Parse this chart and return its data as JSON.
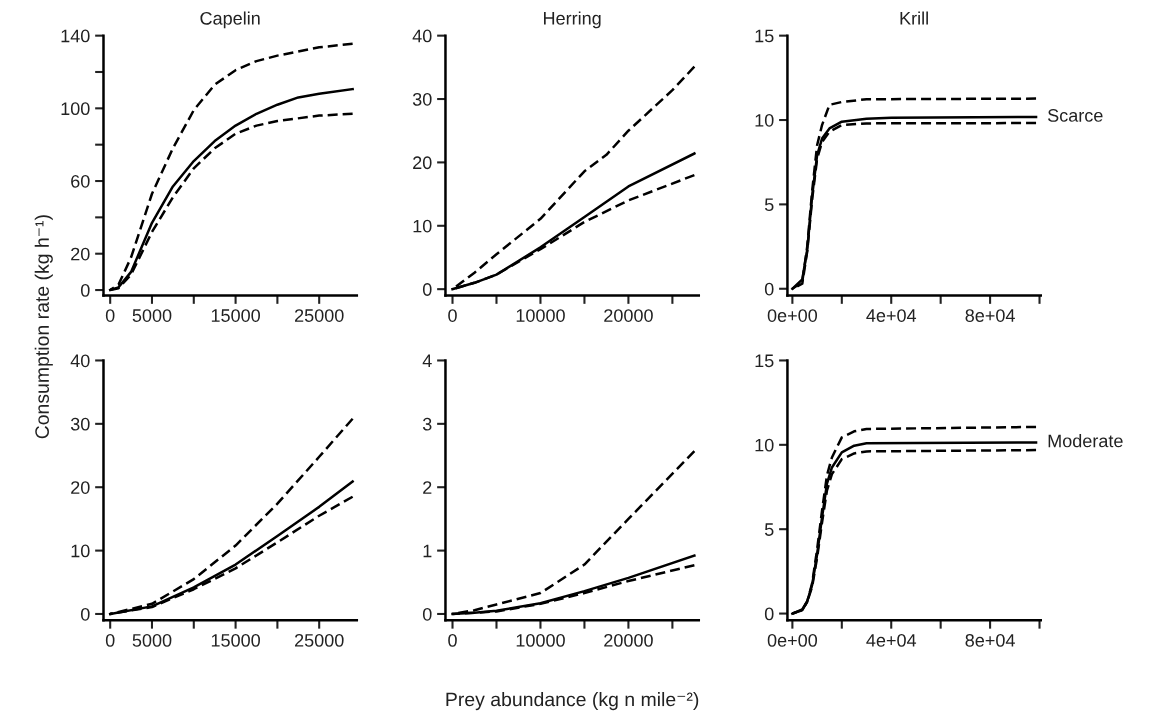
{
  "chart_data": [
    {
      "type": "line",
      "title": "Capelin",
      "ylabel": "Consumption rate (kg h⁻¹)",
      "xlim": [
        -800,
        29500
      ],
      "ylim": [
        -3,
        140
      ],
      "xticks": [
        0,
        5000,
        {
          "value": 10000,
          "label": null
        },
        15000,
        {
          "value": 20000,
          "label": null
        },
        25000
      ],
      "yticks": [
        0,
        20,
        {
          "value": 40,
          "label": null
        },
        60,
        {
          "value": 80,
          "label": null
        },
        100,
        {
          "value": 120,
          "label": null
        },
        140
      ],
      "series": [
        {
          "color": "#000000",
          "line_style": "solid",
          "x": [
            0,
            1000,
            2500,
            5000,
            7500,
            10000,
            12500,
            15000,
            17500,
            20000,
            22500,
            25000,
            29000
          ],
          "values": [
            0,
            1.5,
            10,
            37,
            57,
            71,
            82,
            90.5,
            97,
            102,
            106,
            108,
            110.6
          ]
        },
        {
          "color": "#000000",
          "line_style": "dashed",
          "x": [
            0,
            1000,
            2500,
            5000,
            7500,
            10000,
            12500,
            15000,
            17500,
            20000,
            25000,
            29000
          ],
          "values": [
            0,
            3,
            18,
            53,
            78,
            99,
            113,
            121,
            126,
            129,
            133.6,
            135.5
          ]
        },
        {
          "color": "#000000",
          "line_style": "dashed",
          "x": [
            0,
            1000,
            2500,
            5000,
            7500,
            10000,
            12500,
            15000,
            17500,
            20000,
            25000,
            29000
          ],
          "values": [
            0,
            1,
            8.5,
            32,
            51,
            67,
            78,
            86,
            90.5,
            93,
            96,
            97
          ]
        }
      ]
    },
    {
      "type": "line",
      "title": "Herring",
      "xlim": [
        -800,
        28000
      ],
      "ylim": [
        -1,
        40
      ],
      "xticks": [
        0,
        {
          "value": 5000,
          "label": null
        },
        10000,
        {
          "value": 15000,
          "label": null
        },
        20000,
        {
          "value": 25000,
          "label": null
        }
      ],
      "yticks": [
        0,
        10,
        20,
        30,
        40
      ],
      "series": [
        {
          "color": "#000000",
          "line_style": "solid",
          "x": [
            0,
            2500,
            5000,
            10000,
            15000,
            20000,
            27500
          ],
          "values": [
            0,
            1.0,
            2.3,
            6.6,
            11.4,
            16.2,
            21.4
          ]
        },
        {
          "color": "#000000",
          "line_style": "dashed",
          "x": [
            0,
            2500,
            5000,
            10000,
            15000,
            17500,
            20000,
            25000,
            27500
          ],
          "values": [
            0,
            2.6,
            5.5,
            11.1,
            18.6,
            21.2,
            25,
            31.4,
            35.1
          ]
        },
        {
          "color": "#000000",
          "line_style": "dashed",
          "x": [
            0,
            2500,
            5000,
            10000,
            15000,
            20000,
            27500
          ],
          "values": [
            0,
            1.0,
            2.3,
            6.3,
            10.6,
            14,
            18
          ]
        }
      ]
    },
    {
      "type": "line",
      "title": "Krill",
      "xlim": [
        -2000,
        100500
      ],
      "ylim": [
        -0.4,
        15
      ],
      "xticks": [
        {
          "value": 0,
          "label": "0e+00"
        },
        {
          "value": 20000,
          "label": null
        },
        {
          "value": 40000,
          "label": "4e+04"
        },
        {
          "value": 60000,
          "label": null
        },
        {
          "value": 80000,
          "label": "8e+04"
        },
        {
          "value": 100000,
          "label": null
        }
      ],
      "yticks": [
        0,
        5,
        10,
        15
      ],
      "annotations": [
        {
          "text": "Scarce",
          "x": 98600,
          "y": 10.18
        }
      ],
      "series": [
        {
          "color": "#000000",
          "line_style": "solid",
          "x": [
            0,
            4000,
            6000,
            8000,
            10000,
            12000,
            15000,
            20000,
            30000,
            40000,
            98600
          ],
          "values": [
            0,
            0.55,
            2.3,
            5.5,
            7.9,
            8.9,
            9.5,
            9.9,
            10.08,
            10.14,
            10.18
          ]
        },
        {
          "color": "#000000",
          "line_style": "dashed",
          "x": [
            0,
            4000,
            6000,
            8000,
            10000,
            12000,
            15000,
            20000,
            30000,
            98600
          ],
          "values": [
            0,
            0.4,
            2.5,
            5.8,
            8.5,
            9.7,
            10.9,
            11.07,
            11.23,
            11.27
          ]
        },
        {
          "color": "#000000",
          "line_style": "dashed",
          "x": [
            0,
            4000,
            6000,
            8000,
            10000,
            12000,
            15000,
            20000,
            30000,
            98600
          ],
          "values": [
            0,
            0.3,
            2.2,
            5.3,
            7.7,
            8.7,
            9.3,
            9.7,
            9.8,
            9.82
          ]
        }
      ]
    },
    {
      "type": "line",
      "xlim": [
        -800,
        29500
      ],
      "ylim": [
        -1,
        40
      ],
      "xticks": [
        0,
        5000,
        {
          "value": 10000,
          "label": null
        },
        15000,
        {
          "value": 20000,
          "label": null
        },
        25000
      ],
      "yticks": [
        0,
        10,
        20,
        30,
        40
      ],
      "series": [
        {
          "color": "#000000",
          "line_style": "solid",
          "x": [
            0,
            5000,
            10000,
            15000,
            20000,
            25000,
            29000
          ],
          "values": [
            0,
            1.2,
            4.2,
            7.8,
            12.3,
            16.9,
            20.9
          ]
        },
        {
          "color": "#000000",
          "line_style": "dashed",
          "x": [
            0,
            5000,
            10000,
            15000,
            20000,
            25000,
            29000
          ],
          "values": [
            0,
            1.6,
            5.5,
            10.8,
            17.4,
            24.8,
            30.8
          ]
        },
        {
          "color": "#000000",
          "line_style": "dashed",
          "x": [
            0,
            5000,
            10000,
            15000,
            20000,
            25000,
            29000
          ],
          "values": [
            0,
            1.1,
            3.9,
            7.2,
            11.3,
            15.5,
            18.5
          ]
        }
      ]
    },
    {
      "type": "line",
      "xlabel": "Prey abundance (kg n mile⁻²)",
      "xlim": [
        -800,
        28000
      ],
      "ylim": [
        -0.1,
        4
      ],
      "xticks": [
        0,
        {
          "value": 5000,
          "label": null
        },
        10000,
        {
          "value": 15000,
          "label": null
        },
        20000,
        {
          "value": 25000,
          "label": null
        }
      ],
      "yticks": [
        0,
        1,
        2,
        3,
        4
      ],
      "series": [
        {
          "color": "#000000",
          "line_style": "solid",
          "x": [
            0,
            2500,
            5000,
            10000,
            15000,
            20000,
            27500
          ],
          "values": [
            0,
            0.02,
            0.05,
            0.17,
            0.36,
            0.57,
            0.92
          ]
        },
        {
          "color": "#000000",
          "line_style": "dashed",
          "x": [
            0,
            2500,
            5000,
            10000,
            15000,
            20000,
            27500
          ],
          "values": [
            0,
            0.06,
            0.15,
            0.33,
            0.78,
            1.5,
            2.57
          ]
        },
        {
          "color": "#000000",
          "line_style": "dashed",
          "x": [
            0,
            2500,
            5000,
            10000,
            15000,
            20000,
            27500
          ],
          "values": [
            0,
            0.02,
            0.04,
            0.16,
            0.33,
            0.52,
            0.77
          ]
        }
      ]
    },
    {
      "type": "line",
      "xlim": [
        -2000,
        100500
      ],
      "ylim": [
        -0.4,
        15
      ],
      "xticks": [
        {
          "value": 0,
          "label": "0e+00"
        },
        {
          "value": 20000,
          "label": null
        },
        {
          "value": 40000,
          "label": "4e+04"
        },
        {
          "value": 60000,
          "label": null
        },
        {
          "value": 80000,
          "label": "8e+04"
        },
        {
          "value": 100000,
          "label": null
        }
      ],
      "yticks": [
        0,
        5,
        10,
        15
      ],
      "annotations": [
        {
          "text": "Moderate",
          "x": 98600,
          "y": 10.14
        }
      ],
      "series": [
        {
          "color": "#000000",
          "line_style": "solid",
          "x": [
            0,
            4000,
            6000,
            8000,
            10000,
            12000,
            14000,
            16000,
            20000,
            25000,
            30000,
            98600
          ],
          "values": [
            0,
            0.24,
            0.73,
            1.7,
            3.5,
            5.7,
            7.7,
            8.66,
            9.55,
            9.95,
            10.09,
            10.14
          ]
        },
        {
          "color": "#000000",
          "line_style": "dashed",
          "x": [
            0,
            4000,
            6000,
            8000,
            10000,
            12000,
            14000,
            16000,
            20000,
            25000,
            30000,
            98600
          ],
          "values": [
            0,
            0.2,
            0.7,
            1.8,
            3.8,
            6.1,
            8.2,
            9.25,
            10.44,
            10.8,
            10.94,
            11.06
          ]
        },
        {
          "color": "#000000",
          "line_style": "dashed",
          "x": [
            0,
            4000,
            6000,
            8000,
            10000,
            12000,
            14000,
            16000,
            20000,
            25000,
            30000,
            98600
          ],
          "values": [
            0,
            0.2,
            0.7,
            1.6,
            3.3,
            5.4,
            7.3,
            8.26,
            9.15,
            9.49,
            9.61,
            9.69
          ]
        }
      ]
    }
  ]
}
